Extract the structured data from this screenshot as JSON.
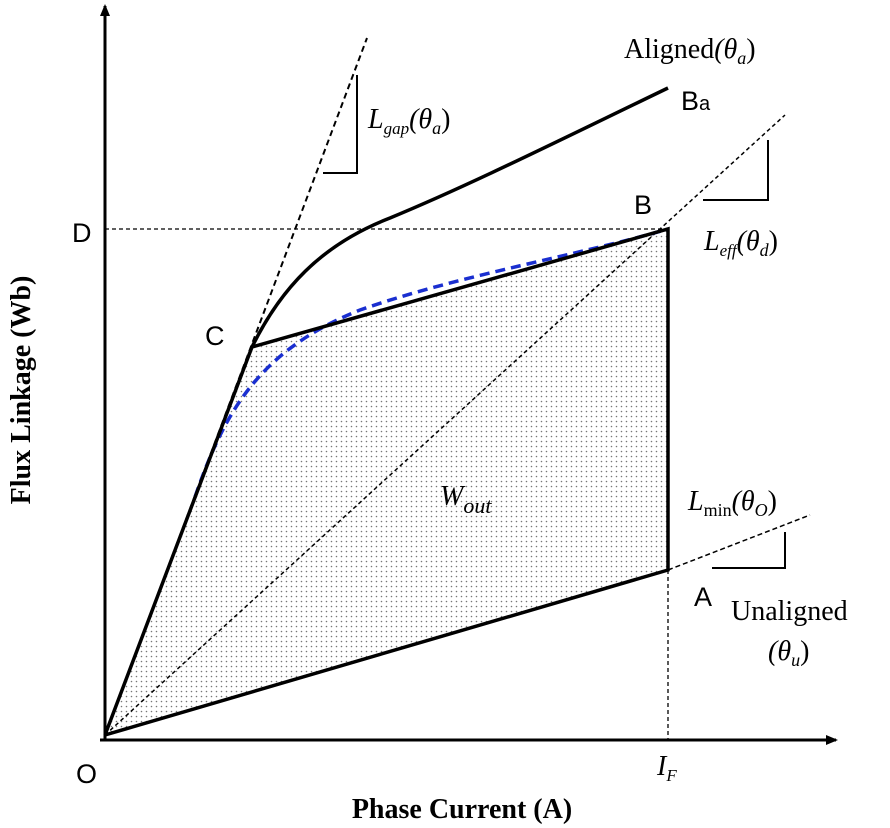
{
  "axes": {
    "y_label": "Flux Linkage (Wb)",
    "x_label": "Phase Current (A)"
  },
  "points": {
    "origin": "O",
    "d": "D",
    "c": "C",
    "b": "B",
    "ba": {
      "symbol": "B",
      "subscript": "a"
    },
    "a": "A"
  },
  "labels": {
    "aligned": {
      "text": "Aligned",
      "open": "(θ",
      "subscript": "a",
      "close": ")"
    },
    "l_gap": {
      "symbol": "L",
      "subscript": "gap",
      "open": "(θ",
      "argument_subscript": "a",
      "close": ")"
    },
    "l_eff": {
      "symbol": "L",
      "subscript": "eff",
      "open": "(θ",
      "argument_subscript": "d",
      "close": ")"
    },
    "l_min": {
      "symbol": "L",
      "subscript": "min",
      "open": "(θ",
      "argument_subscript": "O",
      "close": ")"
    },
    "unaligned": {
      "text": "Unaligned",
      "open": "(θ",
      "subscript": "u",
      "close": ")"
    },
    "w_out": {
      "symbol": "W",
      "subscript": "out"
    },
    "i_f": {
      "symbol": "I",
      "subscript": "F"
    }
  }
}
